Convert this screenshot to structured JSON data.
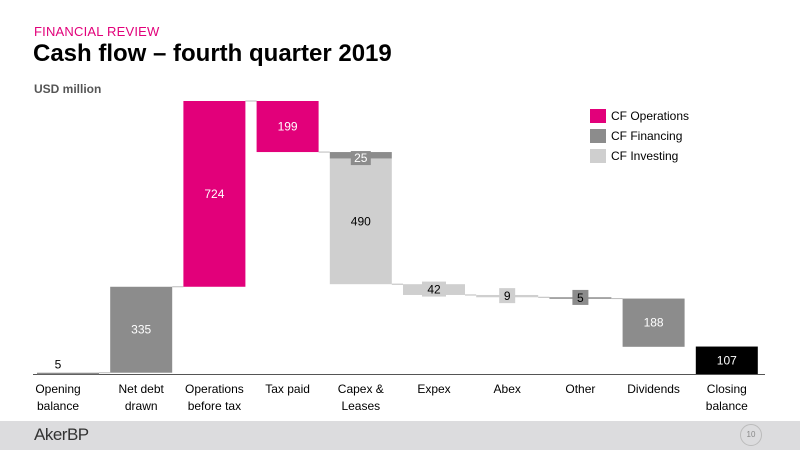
{
  "header": {
    "kicker": "FINANCIAL REVIEW",
    "title": "Cash flow – fourth quarter 2019",
    "unit": "USD million"
  },
  "footer": {
    "logo": "AkerBP",
    "page": "10"
  },
  "colors": {
    "operations": "#e2007a",
    "financing": "#8c8c8c",
    "investing": "#cfcfcf",
    "closing": "#000000"
  },
  "chart_data": {
    "type": "bar",
    "subtype": "waterfall",
    "unit": "USD million",
    "legend": [
      {
        "name": "CF Operations",
        "color": "#e2007a"
      },
      {
        "name": "CF Financing",
        "color": "#8c8c8c"
      },
      {
        "name": "CF Investing",
        "color": "#cfcfcf"
      }
    ],
    "legend_position": "top-right",
    "categories": [
      [
        "Opening",
        "balance"
      ],
      [
        "Net debt",
        "drawn"
      ],
      [
        "Operations",
        "before tax"
      ],
      [
        "Tax paid"
      ],
      [
        "Capex &",
        "Leases"
      ],
      [
        "Expex"
      ],
      [
        "Abex"
      ],
      [
        "Other"
      ],
      [
        "Dividends"
      ],
      [
        "Closing",
        "balance"
      ]
    ],
    "steps": [
      {
        "label": "5",
        "segments": [
          {
            "value": 5,
            "from": 0,
            "to": 5,
            "kind": "financing"
          }
        ]
      },
      {
        "label": "335",
        "segments": [
          {
            "value": 335,
            "from": 5,
            "to": 340,
            "kind": "financing"
          }
        ]
      },
      {
        "label": "724",
        "segments": [
          {
            "value": 724,
            "from": 340,
            "to": 1064,
            "kind": "operations"
          }
        ]
      },
      {
        "label": "199",
        "segments": [
          {
            "value": -199,
            "from": 1064,
            "to": 865,
            "kind": "operations"
          }
        ]
      },
      {
        "label": "490",
        "sublabel": "25",
        "segments": [
          {
            "value": -25,
            "from": 865,
            "to": 840,
            "kind": "financing"
          },
          {
            "value": -490,
            "from": 840,
            "to": 350,
            "kind": "investing"
          }
        ]
      },
      {
        "label": "42",
        "segments": [
          {
            "value": -42,
            "from": 350,
            "to": 308,
            "kind": "investing"
          }
        ]
      },
      {
        "label": "9",
        "segments": [
          {
            "value": -9,
            "from": 308,
            "to": 299,
            "kind": "investing"
          }
        ]
      },
      {
        "label": "5",
        "segments": [
          {
            "value": -5,
            "from": 299,
            "to": 294,
            "kind": "financing"
          }
        ]
      },
      {
        "label": "188",
        "segments": [
          {
            "value": -188,
            "from": 294,
            "to": 106,
            "kind": "financing"
          }
        ]
      },
      {
        "label": "107",
        "segments": [
          {
            "value": 107,
            "from": 0,
            "to": 107,
            "kind": "closing"
          }
        ]
      }
    ],
    "ylim": [
      0,
      1064
    ]
  }
}
